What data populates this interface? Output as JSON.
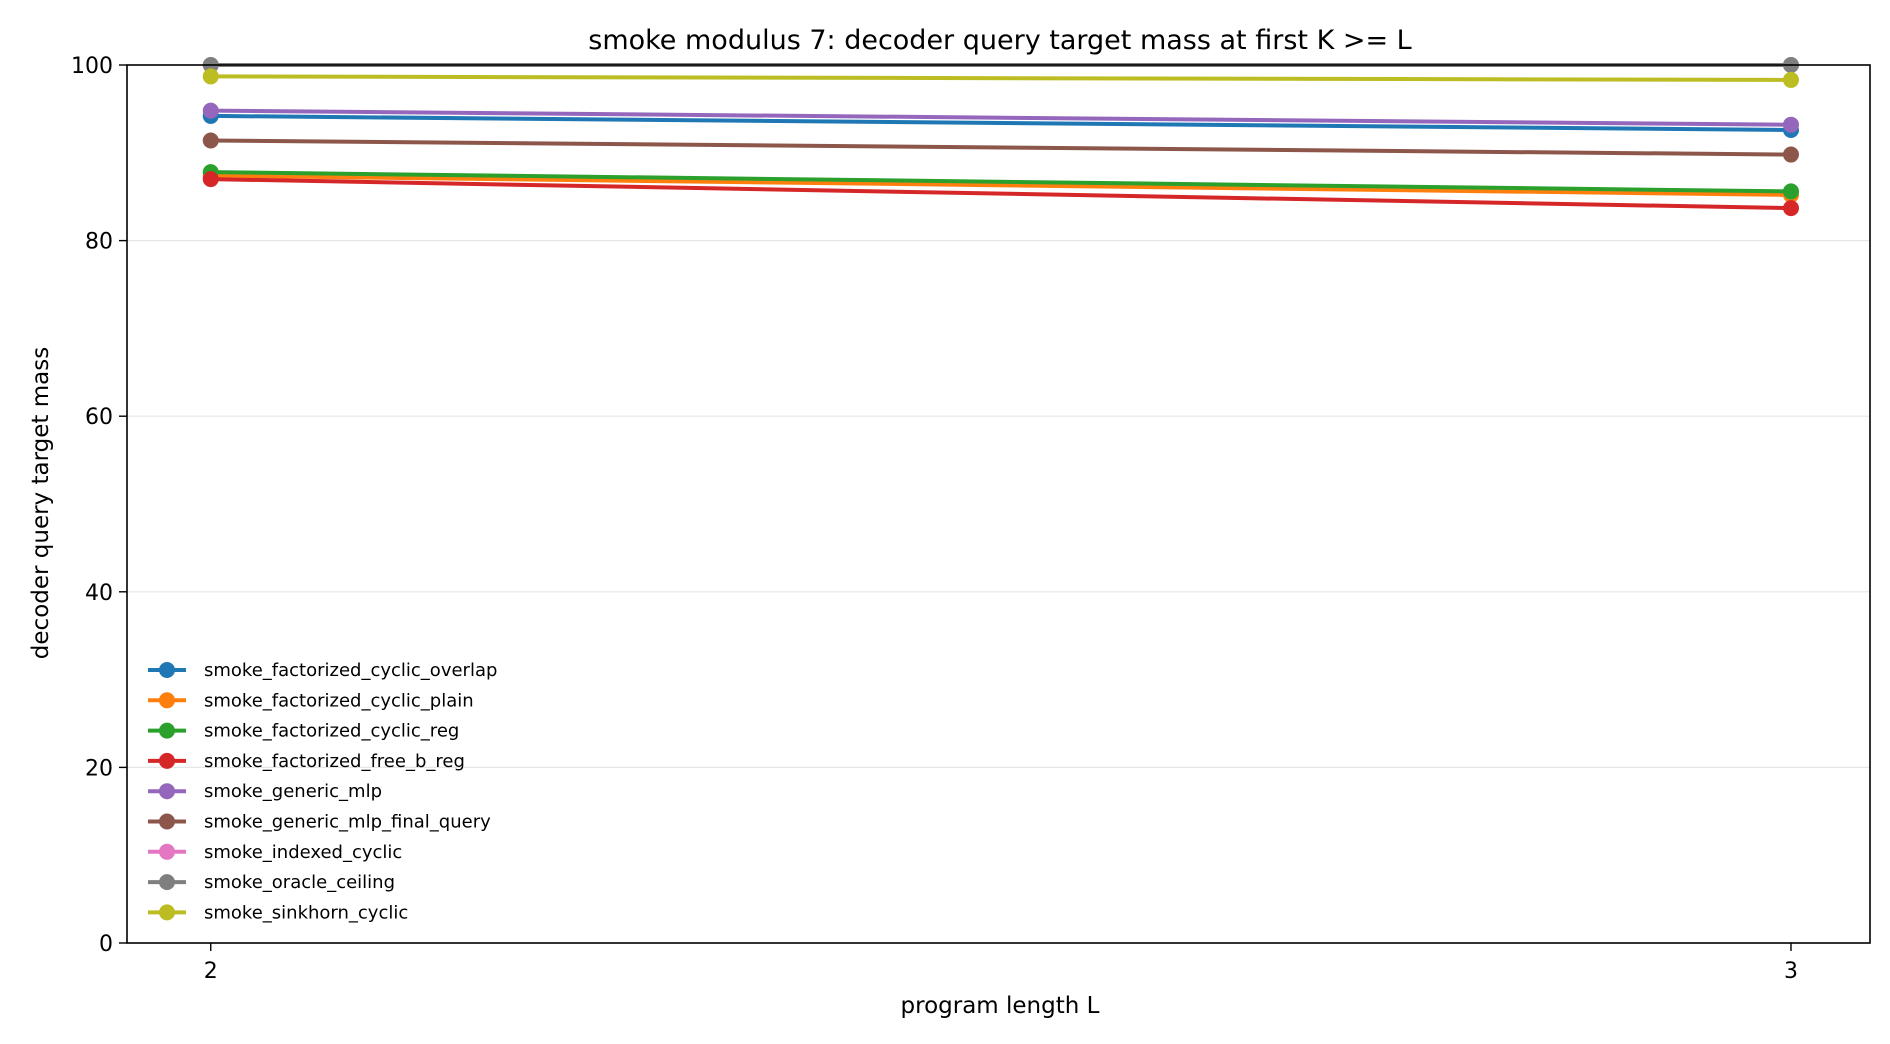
{
  "chart_data": {
    "type": "line",
    "title": "smoke modulus 7: decoder query target mass at first K >= L",
    "xlabel": "program length L",
    "ylabel": "decoder query target mass",
    "x": [
      2,
      3
    ],
    "x_ticks": [
      "2",
      "3"
    ],
    "xlim": [
      1.947,
      3.05
    ],
    "ylim": [
      0,
      100
    ],
    "y_ticks": [
      "0",
      "20",
      "40",
      "60",
      "80",
      "100"
    ],
    "grid": "horizontal",
    "legend_position": "lower-left",
    "series": [
      {
        "name": "smoke_factorized_cyclic_overlap",
        "color": "#1f77b4",
        "values": [
          94.2,
          92.6
        ]
      },
      {
        "name": "smoke_factorized_cyclic_plain",
        "color": "#ff7f0e",
        "values": [
          87.4,
          85.2
        ]
      },
      {
        "name": "smoke_factorized_cyclic_reg",
        "color": "#2ca02c",
        "values": [
          87.8,
          85.6
        ]
      },
      {
        "name": "smoke_factorized_free_b_reg",
        "color": "#d62728",
        "values": [
          87.0,
          83.7
        ]
      },
      {
        "name": "smoke_generic_mlp",
        "color": "#9467bd",
        "values": [
          94.8,
          93.2
        ]
      },
      {
        "name": "smoke_generic_mlp_final_query",
        "color": "#8c564b",
        "values": [
          91.4,
          89.8
        ]
      },
      {
        "name": "smoke_indexed_cyclic",
        "color": "#e377c2",
        "values": [
          100.0,
          100.0
        ]
      },
      {
        "name": "smoke_oracle_ceiling",
        "color": "#7f7f7f",
        "values": [
          100.0,
          100.0
        ]
      },
      {
        "name": "smoke_sinkhorn_cyclic",
        "color": "#bcbd22",
        "values": [
          98.7,
          98.3
        ]
      }
    ]
  }
}
